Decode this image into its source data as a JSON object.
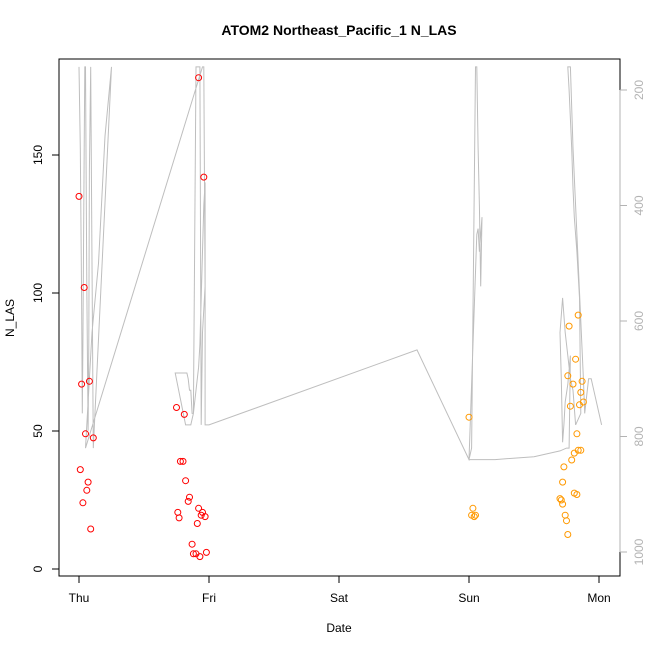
{
  "chart_data": {
    "type": "scatter",
    "title": "ATOM2 Northeast_Pacific_1 N_LAS",
    "xlabel": "Date",
    "ylabel": "N_LAS",
    "x_ticks": [
      "Thu",
      "Fri",
      "Sat",
      "Sun",
      "Mon"
    ],
    "y_ticks": [
      0,
      50,
      100,
      150
    ],
    "y_right_ticks": [
      200,
      400,
      600,
      800,
      1000
    ],
    "xlim": [
      -0.2,
      4.17
    ],
    "ylim": [
      -2,
      185
    ],
    "y_right_lim": [
      1040,
      160
    ],
    "right_axis_inverted": true,
    "colors": {
      "red": "#ff0000",
      "orange": "#ff9900",
      "profile": "#bebebe",
      "right_axis": "#b3b3b3"
    },
    "series": [
      {
        "color": "red",
        "points": [
          [
            0.0,
            135
          ],
          [
            0.04,
            102
          ],
          [
            0.02,
            67
          ],
          [
            0.08,
            68
          ],
          [
            0.05,
            49
          ],
          [
            0.11,
            47.5
          ],
          [
            0.01,
            36
          ],
          [
            0.03,
            24
          ],
          [
            0.07,
            31.5
          ],
          [
            0.06,
            28.5
          ],
          [
            0.09,
            14.5
          ],
          [
            0.75,
            58.5
          ],
          [
            0.81,
            56
          ],
          [
            0.78,
            39
          ],
          [
            0.8,
            39
          ],
          [
            0.82,
            32
          ],
          [
            0.85,
            26
          ],
          [
            0.84,
            24.5
          ],
          [
            0.76,
            20.5
          ],
          [
            0.77,
            18.5
          ],
          [
            0.92,
            22
          ],
          [
            0.95,
            20.5
          ],
          [
            0.97,
            19
          ],
          [
            0.94,
            19.5
          ],
          [
            0.91,
            16.5
          ],
          [
            0.87,
            9
          ],
          [
            0.88,
            5.5
          ],
          [
            0.9,
            5.5
          ],
          [
            0.98,
            6
          ],
          [
            0.93,
            4.5
          ],
          [
            0.92,
            178
          ],
          [
            0.96,
            142
          ]
        ]
      },
      {
        "color": "orange",
        "points": [
          [
            3.0,
            55
          ],
          [
            3.03,
            22
          ],
          [
            3.02,
            19.5
          ],
          [
            3.04,
            19
          ],
          [
            3.05,
            19.5
          ],
          [
            3.84,
            92
          ],
          [
            3.85,
            59.5
          ],
          [
            3.86,
            64
          ],
          [
            3.87,
            68
          ],
          [
            3.88,
            60.5
          ],
          [
            3.77,
            88
          ],
          [
            3.82,
            76
          ],
          [
            3.8,
            67
          ],
          [
            3.76,
            70
          ],
          [
            3.78,
            59
          ],
          [
            3.83,
            49
          ],
          [
            3.84,
            43
          ],
          [
            3.81,
            42
          ],
          [
            3.86,
            43
          ],
          [
            3.79,
            39.5
          ],
          [
            3.73,
            37
          ],
          [
            3.72,
            31.5
          ],
          [
            3.81,
            27.5
          ],
          [
            3.83,
            27
          ],
          [
            3.71,
            25
          ],
          [
            3.7,
            25.5
          ],
          [
            3.72,
            23.5
          ],
          [
            3.74,
            19.5
          ],
          [
            3.75,
            17.5
          ],
          [
            3.76,
            12.5
          ]
        ]
      }
    ],
    "profile_series": {
      "color": "profile",
      "axis": "right",
      "x": [
        0.0,
        0.01,
        0.02,
        0.025,
        0.03,
        0.035,
        0.04,
        0.045,
        0.05,
        0.06,
        0.07,
        0.075,
        0.08,
        0.09,
        0.1,
        0.11,
        0.25,
        0.2,
        0.15,
        0.1,
        0.05,
        0.95,
        0.96,
        0.97,
        0.95,
        0.94,
        0.93,
        0.91,
        0.9,
        0.88,
        0.87,
        0.86,
        0.85,
        0.84,
        0.83,
        0.82,
        0.81,
        0.8,
        0.78,
        0.76,
        0.74,
        0.82,
        0.84,
        0.86,
        0.88,
        0.9,
        0.92,
        0.93,
        0.94,
        0.95,
        0.96,
        0.97,
        0.97,
        0.98,
        1.0,
        2.6,
        3.0,
        3.02,
        3.05,
        3.06,
        3.07,
        3.08,
        3.09,
        3.1,
        3.08,
        3.07,
        3.06,
        3.0,
        3.03,
        3.05,
        3.2,
        3.5,
        3.7,
        3.75,
        3.77,
        3.78,
        3.76,
        3.74,
        3.73,
        3.72,
        3.71,
        3.7,
        3.72,
        3.74,
        3.76,
        3.78,
        3.8,
        3.82,
        3.84,
        3.86,
        3.85,
        3.84,
        3.83,
        3.81,
        3.8,
        3.79,
        3.78,
        3.77,
        3.76,
        3.78,
        3.8,
        3.82,
        3.84,
        3.86,
        3.88,
        3.89,
        3.9,
        3.91,
        3.92,
        3.94,
        3.96,
        3.98,
        4.0,
        4.02
      ],
      "y": [
        160,
        300,
        560,
        760,
        640,
        480,
        300,
        160,
        160,
        540,
        790,
        640,
        340,
        160,
        500,
        820,
        160,
        280,
        500,
        620,
        820,
        160,
        160,
        540,
        620,
        780,
        160,
        160,
        160,
        760,
        760,
        720,
        720,
        700,
        690,
        690,
        690,
        690,
        690,
        690,
        690,
        780,
        780,
        780,
        760,
        720,
        680,
        640,
        560,
        480,
        400,
        360,
        780,
        780,
        780,
        650,
        840,
        820,
        160,
        160,
        300,
        400,
        540,
        420,
        480,
        440,
        450,
        840,
        840,
        840,
        840,
        835,
        825,
        820,
        820,
        660,
        710,
        740,
        780,
        810,
        700,
        620,
        560,
        620,
        660,
        700,
        720,
        780,
        770,
        760,
        560,
        520,
        480,
        420,
        370,
        300,
        250,
        200,
        160,
        160,
        300,
        400,
        500,
        600,
        700,
        760,
        740,
        720,
        700,
        700,
        720,
        740,
        760,
        780
      ]
    }
  }
}
